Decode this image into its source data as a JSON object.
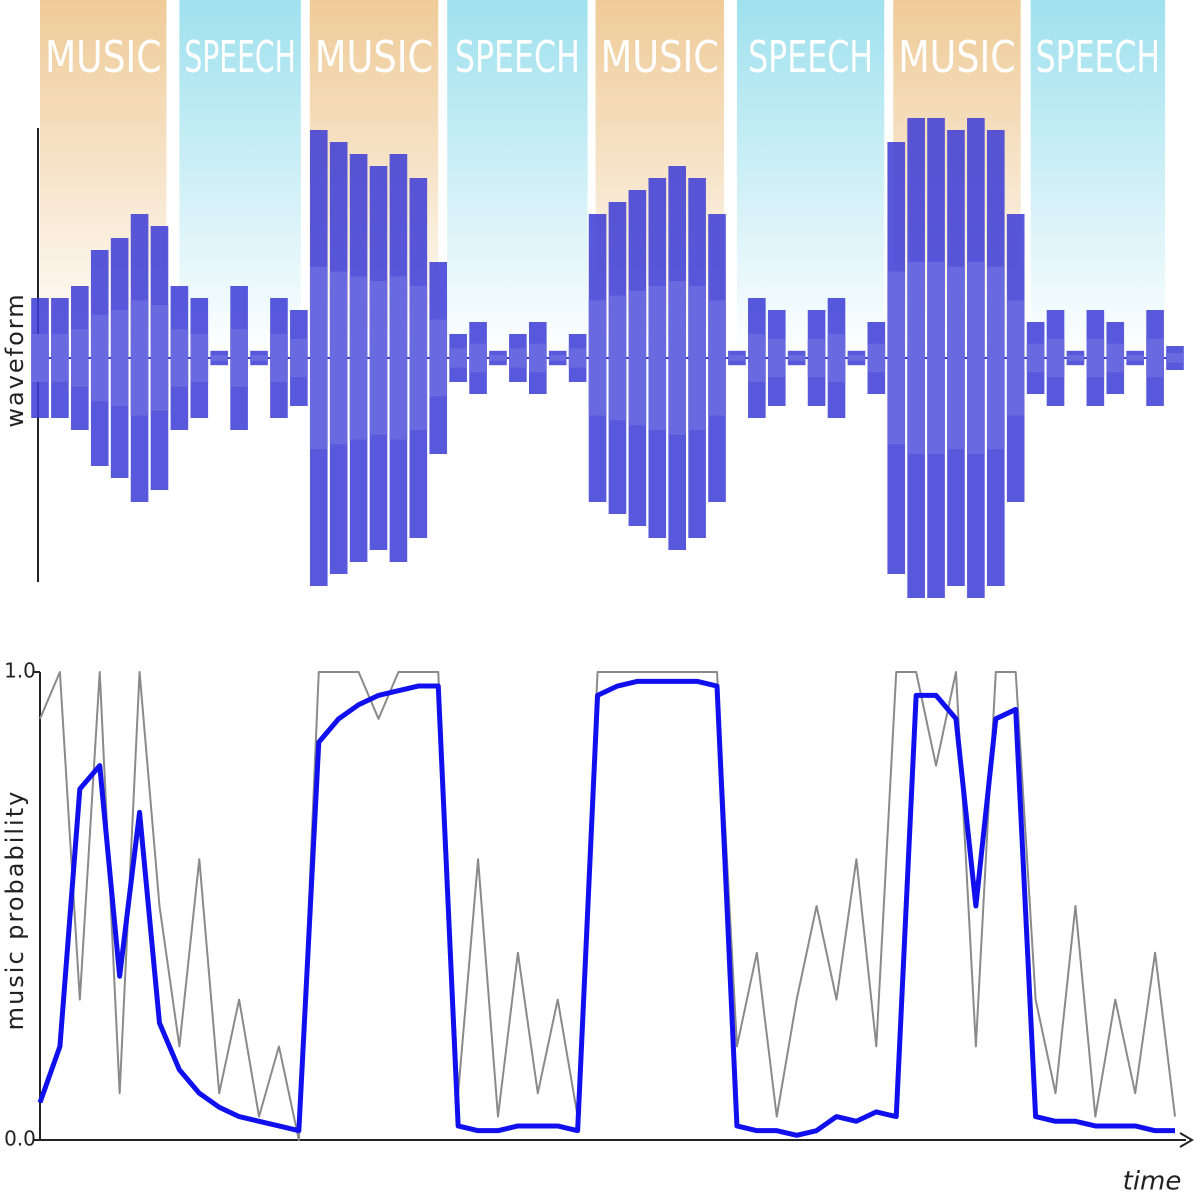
{
  "chart_data": [
    {
      "type": "waveform",
      "ylabel": "waveform",
      "segments": [
        {
          "label": "MUSIC",
          "start": 0,
          "end": 12.7,
          "color": "#efcb98"
        },
        {
          "label": "SPEECH",
          "start": 14,
          "end": 26.2,
          "color": "#9fe1ee"
        },
        {
          "label": "MUSIC",
          "start": 27.1,
          "end": 40,
          "color": "#efcb98"
        },
        {
          "label": "SPEECH",
          "start": 40.9,
          "end": 55,
          "color": "#9fe1ee"
        },
        {
          "label": "MUSIC",
          "start": 55.8,
          "end": 68.7,
          "color": "#efcb98"
        },
        {
          "label": "SPEECH",
          "start": 70,
          "end": 84.8,
          "color": "#9fe1ee"
        },
        {
          "label": "MUSIC",
          "start": 85.7,
          "end": 98.5,
          "color": "#efcb98"
        },
        {
          "label": "SPEECH",
          "start": 99.5,
          "end": 113,
          "color": "#9fe1ee"
        }
      ],
      "xlim": [
        0,
        114
      ],
      "ylim": [
        -1,
        1
      ],
      "color": "#3b3bd6",
      "x": [
        0,
        2,
        4,
        6,
        8,
        10,
        12,
        14,
        16,
        18,
        20,
        22,
        24,
        26,
        28,
        30,
        32,
        34,
        36,
        38,
        40,
        42,
        44,
        46,
        48,
        50,
        52,
        54,
        56,
        58,
        60,
        62,
        64,
        66,
        68,
        70,
        72,
        74,
        76,
        78,
        80,
        82,
        84,
        86,
        88,
        90,
        92,
        94,
        96,
        98,
        100,
        102,
        104,
        106,
        108,
        110,
        112,
        114
      ],
      "values": [
        0.25,
        0.25,
        0.3,
        0.45,
        0.5,
        0.6,
        0.55,
        0.3,
        0.25,
        0.03,
        0.3,
        0.03,
        0.25,
        0.2,
        0.95,
        0.9,
        0.85,
        0.8,
        0.85,
        0.75,
        0.4,
        0.1,
        0.15,
        0.03,
        0.1,
        0.15,
        0.03,
        0.1,
        0.6,
        0.65,
        0.7,
        0.75,
        0.8,
        0.75,
        0.6,
        0.03,
        0.25,
        0.2,
        0.03,
        0.2,
        0.25,
        0.03,
        0.15,
        0.9,
        1,
        1,
        0.95,
        1,
        0.95,
        0.6,
        0.15,
        0.2,
        0.03,
        0.2,
        0.15,
        0.03,
        0.2,
        0.05
      ]
    },
    {
      "type": "line",
      "ylabel": "music probability",
      "xlabel": "time",
      "xlim": [
        0,
        114
      ],
      "ylim": [
        0,
        1
      ],
      "yticks": [
        {
          "value": 0,
          "label": "0.0"
        },
        {
          "value": 1,
          "label": "1.0"
        }
      ],
      "x": [
        0,
        2,
        4,
        6,
        8,
        10,
        12,
        14,
        16,
        18,
        20,
        22,
        24,
        26,
        28,
        30,
        32,
        34,
        36,
        38,
        40,
        42,
        44,
        46,
        48,
        50,
        52,
        54,
        56,
        58,
        60,
        62,
        64,
        66,
        68,
        70,
        72,
        74,
        76,
        78,
        80,
        82,
        84,
        86,
        88,
        90,
        92,
        94,
        96,
        98,
        100,
        102,
        104,
        106,
        108,
        110,
        112,
        114
      ],
      "series": [
        {
          "color": "#8a8a8a",
          "values": [
            0.9,
            1,
            0.3,
            1,
            0.1,
            1,
            0.5,
            0.2,
            0.6,
            0.1,
            0.3,
            0.05,
            0.2,
            0,
            1,
            1,
            1,
            0.9,
            1,
            1,
            1,
            0.1,
            0.6,
            0.05,
            0.4,
            0.1,
            0.3,
            0.05,
            1,
            1,
            1,
            1,
            1,
            1,
            1,
            0.2,
            0.4,
            0.05,
            0.3,
            0.5,
            0.3,
            0.6,
            0.2,
            1,
            1,
            0.8,
            1,
            0.2,
            1,
            1,
            0.3,
            0.1,
            0.5,
            0.05,
            0.3,
            0.1,
            0.4,
            0.05
          ]
        },
        {
          "color": "#1010ee",
          "values": [
            0.08,
            0.2,
            0.75,
            0.8,
            0.35,
            0.7,
            0.25,
            0.15,
            0.1,
            0.07,
            0.05,
            0.04,
            0.03,
            0.02,
            0.85,
            0.9,
            0.93,
            0.95,
            0.96,
            0.97,
            0.97,
            0.03,
            0.02,
            0.02,
            0.03,
            0.03,
            0.03,
            0.02,
            0.95,
            0.97,
            0.98,
            0.98,
            0.98,
            0.98,
            0.97,
            0.03,
            0.02,
            0.02,
            0.01,
            0.02,
            0.05,
            0.04,
            0.06,
            0.05,
            0.95,
            0.95,
            0.9,
            0.5,
            0.9,
            0.92,
            0.05,
            0.04,
            0.04,
            0.03,
            0.03,
            0.03,
            0.02,
            0.02
          ]
        }
      ]
    }
  ]
}
